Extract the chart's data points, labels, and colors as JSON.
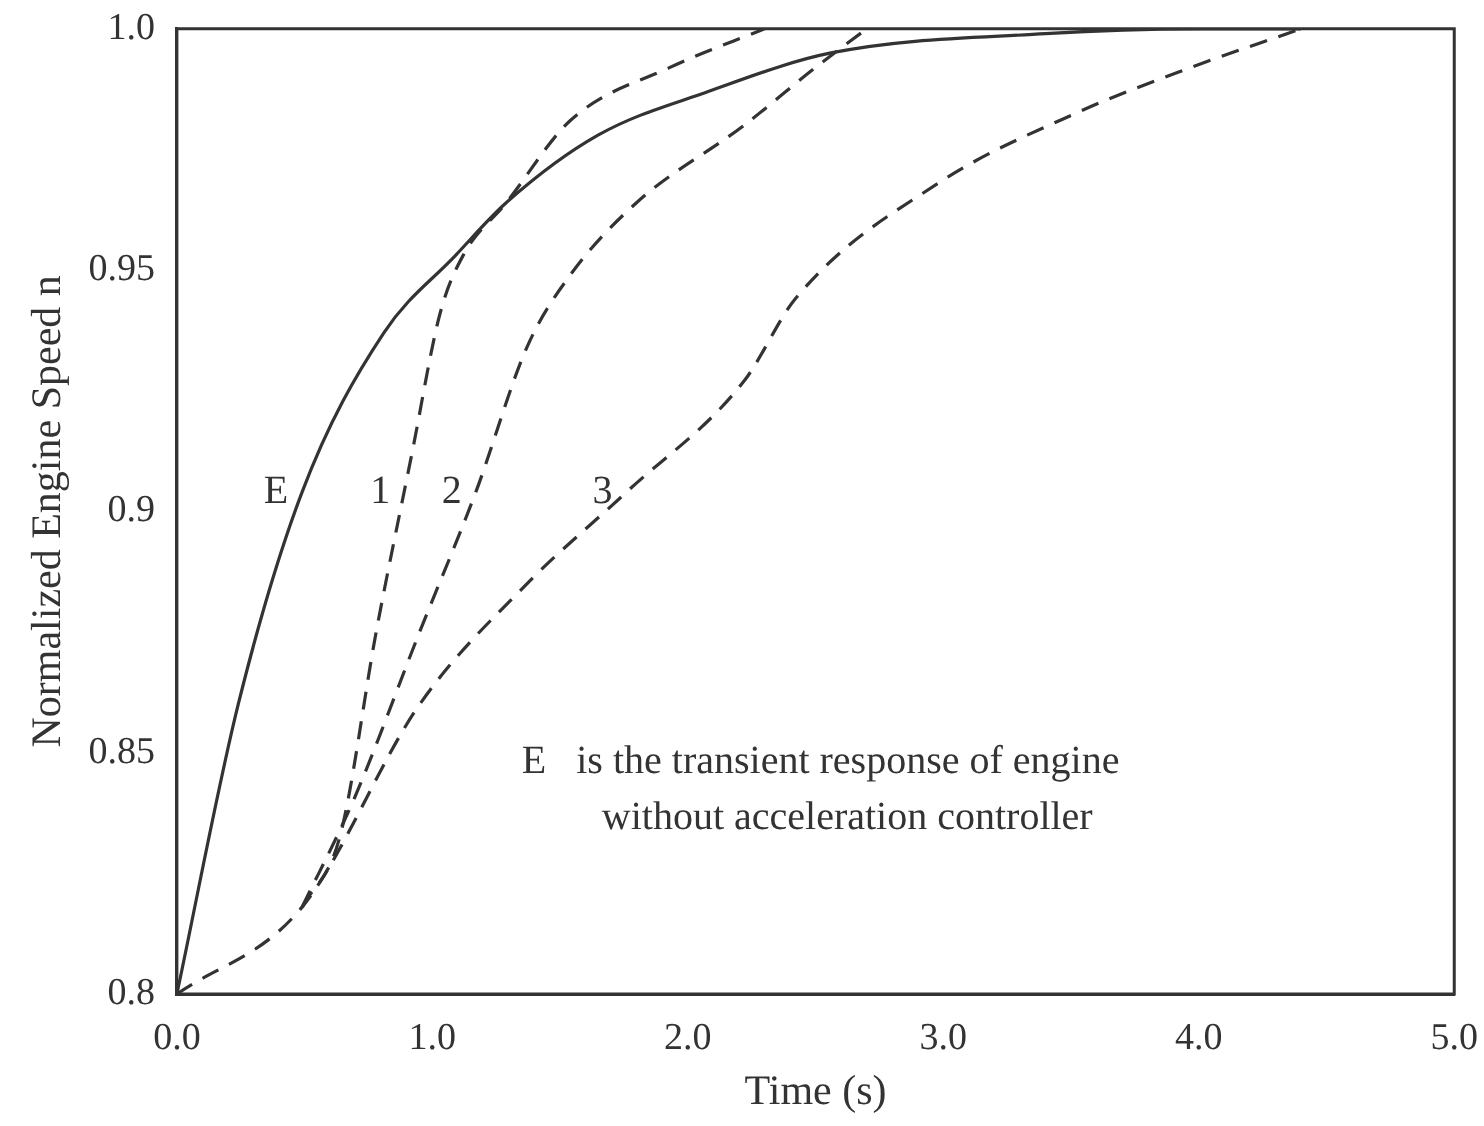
{
  "chart_data": {
    "type": "line",
    "xlabel": "Time (s)",
    "ylabel": "Normalized Engine Speed n",
    "xlim": [
      0,
      5
    ],
    "ylim": [
      0.8,
      1.0
    ],
    "xticks": [
      {
        "value": 0,
        "label": "0.0"
      },
      {
        "value": 1,
        "label": "1.0"
      },
      {
        "value": 2,
        "label": "2.0"
      },
      {
        "value": 3,
        "label": "3.0"
      },
      {
        "value": 4,
        "label": "4.0"
      },
      {
        "value": 5,
        "label": "5.0"
      }
    ],
    "yticks": [
      0.8,
      0.85,
      0.9,
      0.95,
      {
        "value": 1,
        "label": "1.0"
      }
    ],
    "grid": false,
    "legend": false,
    "marker": "none",
    "series": [
      {
        "name": "E",
        "color": "#333333",
        "line_style": "solid",
        "x": [
          0,
          0.24,
          0.49,
          0.81,
          1.09,
          1.29,
          1.65,
          2.08,
          2.56,
          3.4,
          4.0,
          4.4
        ],
        "values": [
          0.8,
          0.86,
          0.904,
          0.937,
          0.953,
          0.964,
          0.978,
          0.987,
          0.995,
          0.999,
          1.0,
          1.0
        ]
      },
      {
        "name": "1",
        "color": "#333333",
        "line_style": "dashed",
        "x": [
          0.49,
          0.64,
          0.78,
          0.92,
          1.03,
          1.12,
          1.29,
          1.54,
          1.93,
          2.3
        ],
        "values": [
          0.818,
          0.833,
          0.875,
          0.912,
          0.941,
          0.953,
          0.964,
          0.981,
          0.992,
          1.0
        ]
      },
      {
        "name": "2",
        "color": "#333333",
        "line_style": "dashed",
        "x": [
          0.49,
          0.69,
          0.95,
          1.17,
          1.37,
          1.54,
          1.8,
          2.22,
          2.5,
          2.7
        ],
        "values": [
          0.818,
          0.84,
          0.875,
          0.904,
          0.934,
          0.949,
          0.964,
          0.98,
          0.992,
          1.0
        ]
      },
      {
        "name": "3",
        "color": "#333333",
        "line_style": "dashed",
        "x": [
          0,
          0.49,
          0.95,
          1.37,
          1.76,
          2.22,
          2.42,
          2.98,
          3.54,
          3.97,
          4.4
        ],
        "values": [
          0.8,
          0.818,
          0.86,
          0.885,
          0.904,
          0.927,
          0.944,
          0.968,
          0.983,
          0.992,
          1.0
        ]
      }
    ],
    "annotations": [
      "E   is the transient response of engine without acceleration controller"
    ]
  }
}
